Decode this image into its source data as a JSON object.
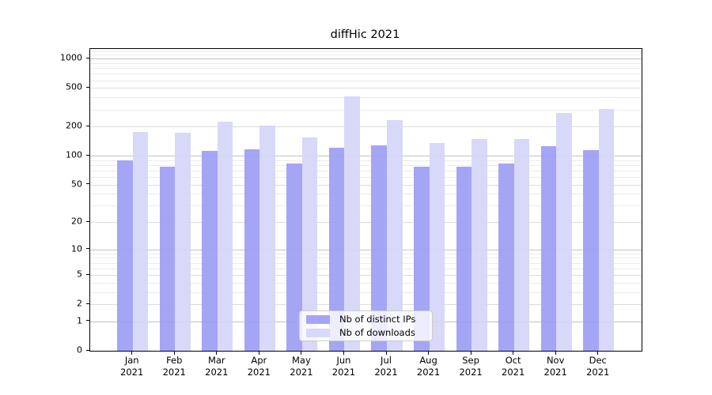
{
  "title": "diffHic 2021",
  "chart_data": {
    "type": "bar",
    "title": "diffHic 2021",
    "categories": [
      "Jan 2021",
      "Feb 2021",
      "Mar 2021",
      "Apr 2021",
      "May 2021",
      "Jun 2021",
      "Jul 2021",
      "Aug 2021",
      "Sep 2021",
      "Oct 2021",
      "Nov 2021",
      "Dec 2021"
    ],
    "series": [
      {
        "name": "Nb of distinct IPs",
        "color": "#9d9df4",
        "values": [
          90,
          77,
          113,
          117,
          83,
          120,
          129,
          77,
          77,
          83,
          126,
          115
        ]
      },
      {
        "name": "Nb of downloads",
        "color": "#d5d5f9",
        "values": [
          175,
          173,
          225,
          203,
          155,
          410,
          233,
          135,
          148,
          148,
          277,
          302
        ]
      }
    ],
    "yscale": "log1p",
    "yticks": [
      0,
      1,
      2,
      5,
      10,
      20,
      50,
      100,
      200,
      500,
      1000
    ],
    "minor_yticks": [
      3,
      4,
      6,
      7,
      8,
      9,
      30,
      40,
      60,
      70,
      80,
      90,
      300,
      400,
      600,
      700,
      800,
      900,
      1100,
      1200
    ],
    "major_decade_ticks": [
      1,
      10,
      100,
      1000
    ],
    "ylim": [
      0,
      1260
    ],
    "xlabel": "",
    "ylabel": "",
    "grid": "on",
    "legend_position": "bottom-center"
  },
  "colors": {
    "ips_bar": "#a8a8f7",
    "downloads_bar": "#d9d9f8",
    "grid_decade": "#c2c2c2",
    "grid_labeled": "#dcdcdc",
    "grid_minor": "#ebebeb",
    "spine": "#000000",
    "legend_border": "#cccccc"
  },
  "legend": {
    "items": [
      "Nb of distinct IPs",
      "Nb of downloads"
    ]
  }
}
